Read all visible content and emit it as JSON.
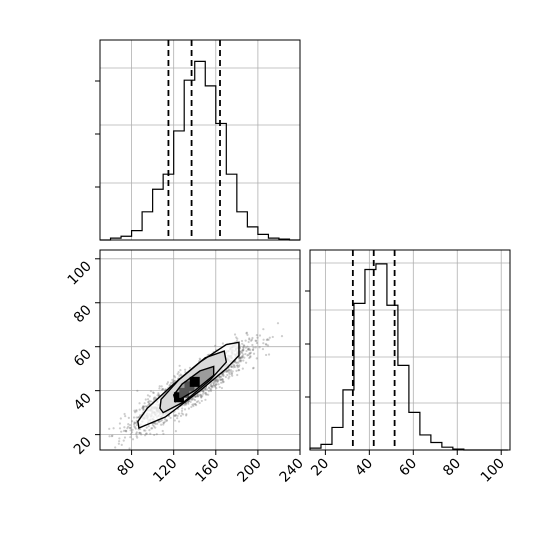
{
  "chart_data": [
    {
      "id": "hist_x",
      "type": "bar",
      "description_type": "step histogram",
      "x_range": [
        50,
        240
      ],
      "bin_edges": [
        50,
        60,
        70,
        80,
        90,
        100,
        110,
        120,
        130,
        140,
        150,
        160,
        170,
        180,
        190,
        200,
        210,
        220,
        230,
        240
      ],
      "values": [
        0.0,
        0.01,
        0.02,
        0.05,
        0.15,
        0.27,
        0.35,
        0.58,
        0.85,
        0.95,
        0.82,
        0.62,
        0.35,
        0.15,
        0.07,
        0.03,
        0.01,
        0.005,
        0.0
      ],
      "quantiles": [
        115,
        137,
        164
      ],
      "ylim": [
        0,
        1.0
      ],
      "grid": true,
      "x_ticks": [
        "80",
        "120",
        "160",
        "200",
        "240"
      ],
      "y_ticks_shown": false
    },
    {
      "id": "scatter_xy",
      "type": "scatter",
      "description_type": "2D density with contours",
      "x_range": [
        50,
        240
      ],
      "y_range": [
        13,
        104
      ],
      "x_ticks": [
        "80",
        "120",
        "160",
        "200",
        "240"
      ],
      "x_tick_values": [
        80,
        120,
        160,
        200,
        240
      ],
      "y_ticks": [
        "20",
        "40",
        "60",
        "80",
        "100"
      ],
      "y_tick_values": [
        20,
        40,
        60,
        80,
        100
      ],
      "grid": true,
      "center": [
        137,
        42
      ],
      "spread": [
        26,
        9
      ],
      "correlation": 0.9,
      "n_points": 2200,
      "contours": [
        {
          "level": "outer",
          "points": [
            [
              87,
              23
            ],
            [
              112,
              28
            ],
            [
              145,
              40
            ],
            [
              170,
              50
            ],
            [
              182,
              56
            ],
            [
              182,
              62
            ],
            [
              170,
              61
            ],
            [
              145,
              53
            ],
            [
              120,
              43
            ],
            [
              95,
              32
            ],
            [
              86,
              26
            ]
          ]
        },
        {
          "level": "middle",
          "points": [
            [
              110,
              30
            ],
            [
              130,
              35
            ],
            [
              155,
              45
            ],
            [
              170,
              53
            ],
            [
              168,
              58
            ],
            [
              150,
              55
            ],
            [
              125,
              45
            ],
            [
              108,
              36
            ],
            [
              107,
              32
            ]
          ]
        },
        {
          "level": "inner",
          "points": [
            [
              122,
              35
            ],
            [
              140,
              40
            ],
            [
              158,
              47
            ],
            [
              158,
              51
            ],
            [
              145,
              49
            ],
            [
              128,
              43
            ],
            [
              120,
              38
            ]
          ]
        }
      ],
      "peak_cells": [
        [
          125,
          37
        ],
        [
          135,
          42
        ],
        [
          140,
          44
        ],
        [
          130,
          39
        ]
      ]
    },
    {
      "id": "hist_y",
      "type": "bar",
      "description_type": "step histogram",
      "x_range": [
        13,
        104
      ],
      "bin_edges": [
        13,
        18,
        23,
        28,
        33,
        38,
        43,
        48,
        53,
        58,
        63,
        68,
        73,
        78,
        83,
        88,
        93,
        98,
        103
      ],
      "values": [
        0.01,
        0.03,
        0.12,
        0.32,
        0.78,
        0.96,
        0.99,
        0.77,
        0.45,
        0.2,
        0.08,
        0.04,
        0.015,
        0.005,
        0.0,
        0.0,
        0.0,
        0.0
      ],
      "quantiles": [
        32.5,
        42,
        51.5
      ],
      "ylim": [
        0,
        1.0
      ],
      "grid": true,
      "x_ticks": [
        "20",
        "40",
        "60",
        "80",
        "100"
      ],
      "x_tick_values": [
        20,
        40,
        60,
        80,
        100
      ],
      "y_ticks_shown": false
    }
  ]
}
